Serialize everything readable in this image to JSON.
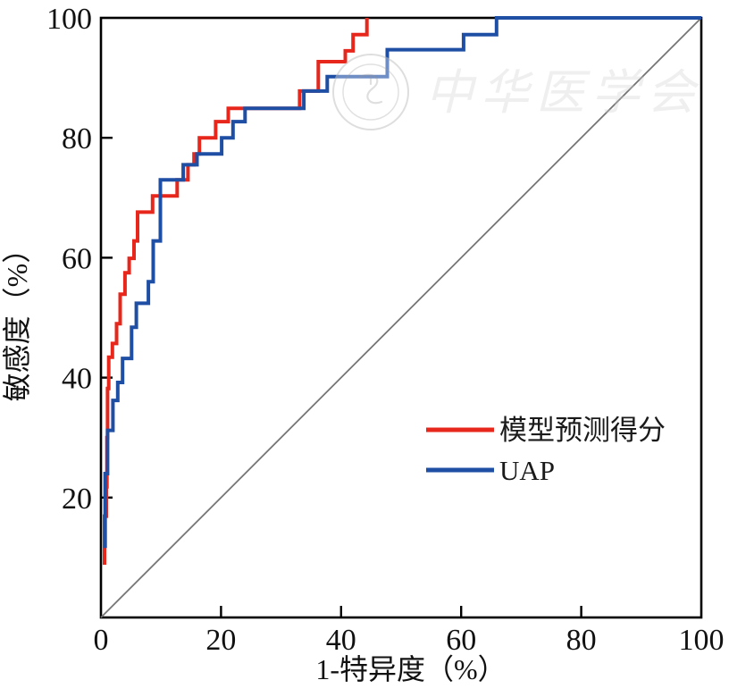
{
  "chart_data": {
    "type": "line",
    "subtype": "roc-step-curve",
    "title": "",
    "xlabel": "1-特异度（%）",
    "ylabel": "敏感度（%）",
    "xlim": [
      0,
      100
    ],
    "ylim": [
      0,
      100
    ],
    "x_ticks": [
      0,
      20,
      40,
      60,
      80,
      100
    ],
    "y_ticks": [
      20,
      40,
      60,
      80,
      100
    ],
    "tick_marks": [
      20,
      40,
      60,
      80
    ],
    "grid": false,
    "legend_position": "right-middle",
    "axis_color": "#000000",
    "reference_line": {
      "name": "chance-diagonal",
      "from": [
        0,
        0
      ],
      "to": [
        100,
        100
      ],
      "color": "#757575"
    },
    "series": [
      {
        "id": "model-score",
        "name": "模型预测得分",
        "color": "#e8271c",
        "points": [
          [
            0.6,
            8.8
          ],
          [
            0.6,
            16.9
          ],
          [
            0.9,
            16.9
          ],
          [
            0.9,
            21.8
          ],
          [
            1.0,
            21.8
          ],
          [
            1.0,
            30.0
          ],
          [
            1.1,
            30.0
          ],
          [
            1.1,
            38.2
          ],
          [
            1.3,
            38.2
          ],
          [
            1.3,
            43.4
          ],
          [
            1.9,
            43.4
          ],
          [
            1.9,
            45.7
          ],
          [
            2.6,
            45.7
          ],
          [
            2.6,
            49.0
          ],
          [
            3.2,
            49.0
          ],
          [
            3.2,
            53.9
          ],
          [
            4.0,
            53.9
          ],
          [
            4.0,
            57.5
          ],
          [
            4.7,
            57.5
          ],
          [
            4.7,
            59.9
          ],
          [
            5.5,
            59.9
          ],
          [
            5.5,
            62.8
          ],
          [
            6.1,
            62.8
          ],
          [
            6.1,
            67.6
          ],
          [
            8.6,
            67.6
          ],
          [
            8.6,
            70.3
          ],
          [
            12.7,
            70.3
          ],
          [
            12.7,
            73.0
          ],
          [
            14.5,
            73.0
          ],
          [
            14.5,
            75.5
          ],
          [
            15.5,
            75.5
          ],
          [
            15.5,
            77.3
          ],
          [
            16.4,
            77.3
          ],
          [
            16.4,
            80.0
          ],
          [
            19.1,
            80.0
          ],
          [
            19.1,
            82.7
          ],
          [
            21.2,
            82.7
          ],
          [
            21.2,
            84.9
          ],
          [
            33.1,
            84.9
          ],
          [
            33.1,
            87.8
          ],
          [
            36.2,
            87.8
          ],
          [
            36.2,
            92.7
          ],
          [
            40.7,
            92.7
          ],
          [
            40.7,
            94.5
          ],
          [
            42.0,
            94.5
          ],
          [
            42.0,
            97.2
          ],
          [
            44.3,
            97.2
          ],
          [
            44.3,
            100.0
          ]
        ]
      },
      {
        "id": "uap",
        "name": "UAP",
        "color": "#1e4fa5",
        "points": [
          [
            0.7,
            11.6
          ],
          [
            0.7,
            24.0
          ],
          [
            1.1,
            24.0
          ],
          [
            1.1,
            31.2
          ],
          [
            2.0,
            31.2
          ],
          [
            2.0,
            36.2
          ],
          [
            2.8,
            36.2
          ],
          [
            2.8,
            39.2
          ],
          [
            3.6,
            39.2
          ],
          [
            3.6,
            43.2
          ],
          [
            5.1,
            43.2
          ],
          [
            5.1,
            48.4
          ],
          [
            5.9,
            48.4
          ],
          [
            5.9,
            52.4
          ],
          [
            7.9,
            52.4
          ],
          [
            7.9,
            56.0
          ],
          [
            8.7,
            56.0
          ],
          [
            8.7,
            62.8
          ],
          [
            9.9,
            62.8
          ],
          [
            9.9,
            73.0
          ],
          [
            13.7,
            73.0
          ],
          [
            13.7,
            75.5
          ],
          [
            16.0,
            75.5
          ],
          [
            16.0,
            77.3
          ],
          [
            20.1,
            77.3
          ],
          [
            20.1,
            80.0
          ],
          [
            22.0,
            80.0
          ],
          [
            22.0,
            82.7
          ],
          [
            24.0,
            82.7
          ],
          [
            24.0,
            84.9
          ],
          [
            33.8,
            84.9
          ],
          [
            33.8,
            87.8
          ],
          [
            37.7,
            87.8
          ],
          [
            37.7,
            90.2
          ],
          [
            47.7,
            90.2
          ],
          [
            47.7,
            94.7
          ],
          [
            60.4,
            94.7
          ],
          [
            60.4,
            97.2
          ],
          [
            65.9,
            97.2
          ],
          [
            65.9,
            100.0
          ],
          [
            100.0,
            100.0
          ]
        ]
      }
    ]
  },
  "watermark": {
    "text": "中华医学会",
    "emblem": "cma-seal"
  }
}
